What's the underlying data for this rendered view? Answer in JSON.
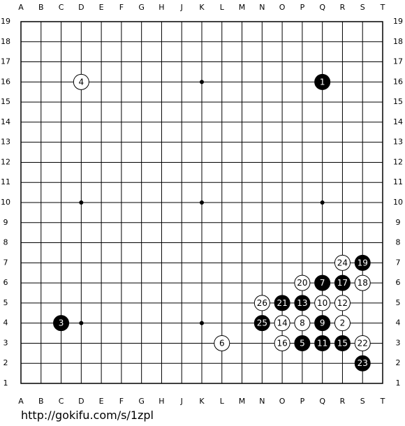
{
  "board": {
    "columns": [
      "A",
      "B",
      "C",
      "D",
      "E",
      "F",
      "G",
      "H",
      "J",
      "K",
      "L",
      "M",
      "N",
      "O",
      "P",
      "Q",
      "R",
      "S",
      "T"
    ],
    "rows": [
      19,
      18,
      17,
      16,
      15,
      14,
      13,
      12,
      11,
      10,
      9,
      8,
      7,
      6,
      5,
      4,
      3,
      2,
      1
    ],
    "stones": [
      {
        "label": 1,
        "color": "black",
        "point": "Q16"
      },
      {
        "label": 2,
        "color": "white",
        "point": "R4"
      },
      {
        "label": 3,
        "color": "black",
        "point": "C4"
      },
      {
        "label": 4,
        "color": "white",
        "point": "D16"
      },
      {
        "label": 5,
        "color": "black",
        "point": "P3"
      },
      {
        "label": 6,
        "color": "white",
        "point": "L3"
      },
      {
        "label": 7,
        "color": "black",
        "point": "Q6"
      },
      {
        "label": 8,
        "color": "white",
        "point": "P4"
      },
      {
        "label": 9,
        "color": "black",
        "point": "Q4"
      },
      {
        "label": 10,
        "color": "white",
        "point": "Q5"
      },
      {
        "label": 11,
        "color": "black",
        "point": "Q3"
      },
      {
        "label": 12,
        "color": "white",
        "point": "R5"
      },
      {
        "label": 13,
        "color": "black",
        "point": "P5"
      },
      {
        "label": 14,
        "color": "white",
        "point": "O4"
      },
      {
        "label": 15,
        "color": "black",
        "point": "R3"
      },
      {
        "label": 16,
        "color": "white",
        "point": "O3"
      },
      {
        "label": 17,
        "color": "black",
        "point": "R6"
      },
      {
        "label": 18,
        "color": "white",
        "point": "S6"
      },
      {
        "label": 19,
        "color": "black",
        "point": "S7"
      },
      {
        "label": 20,
        "color": "white",
        "point": "P6"
      },
      {
        "label": 21,
        "color": "black",
        "point": "O5"
      },
      {
        "label": 22,
        "color": "white",
        "point": "S3"
      },
      {
        "label": 23,
        "color": "black",
        "point": "S2"
      },
      {
        "label": 24,
        "color": "white",
        "point": "R7"
      },
      {
        "label": 25,
        "color": "black",
        "point": "N4"
      },
      {
        "label": 26,
        "color": "white",
        "point": "N5"
      }
    ]
  },
  "footer": {
    "url": "http://gokifu.com/s/1zpl"
  }
}
